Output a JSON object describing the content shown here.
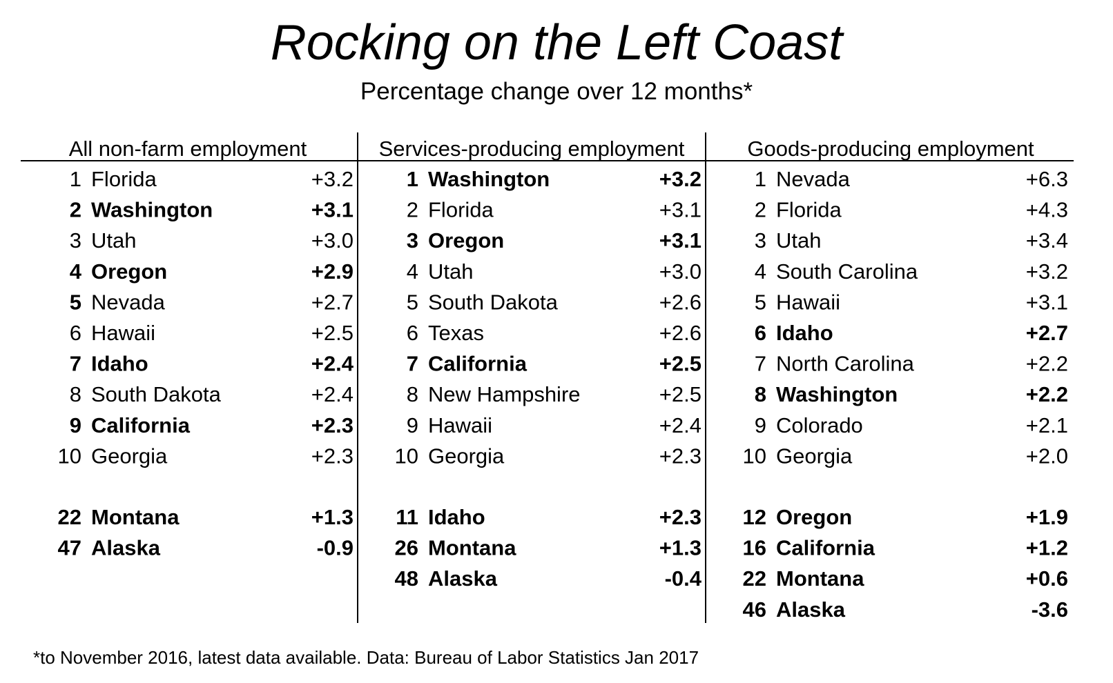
{
  "chart": {
    "title": "Rocking on the Left Coast",
    "subtitle": "Percentage change over 12 months*",
    "footnote": "*to November 2016, latest data available. Data: Bureau of Labor Statistics Jan 2017"
  },
  "chart_data": {
    "type": "table",
    "title": "Rocking on the Left Coast",
    "subtitle": "Percentage change over 12 months*",
    "columns": [
      {
        "header": "All non-farm employment",
        "top10": [
          {
            "rank": "1",
            "state": "Florida",
            "value": "+3.2",
            "bold": false
          },
          {
            "rank": "2",
            "state": "Washington",
            "value": "+3.1",
            "bold": true
          },
          {
            "rank": "3",
            "state": "Utah",
            "value": "+3.0",
            "bold": false
          },
          {
            "rank": "4",
            "state": "Oregon",
            "value": "+2.9",
            "bold": true
          },
          {
            "rank": "5",
            "state": "Nevada",
            "value": "+2.7",
            "bold": false,
            "rank_bold": true
          },
          {
            "rank": "6",
            "state": "Hawaii",
            "value": "+2.5",
            "bold": false
          },
          {
            "rank": "7",
            "state": "Idaho",
            "value": "+2.4",
            "bold": true
          },
          {
            "rank": "8",
            "state": "South Dakota",
            "value": "+2.4",
            "bold": false
          },
          {
            "rank": "9",
            "state": "California",
            "value": "+2.3",
            "bold": true
          },
          {
            "rank": "10",
            "state": "Georgia",
            "value": "+2.3",
            "bold": false
          }
        ],
        "others": [
          {
            "rank": "22",
            "state": "Montana",
            "value": "+1.3",
            "bold": true
          },
          {
            "rank": "47",
            "state": "Alaska",
            "value": "-0.9",
            "bold": true
          }
        ]
      },
      {
        "header": "Services-producing employment",
        "top10": [
          {
            "rank": "1",
            "state": "Washington",
            "value": "+3.2",
            "bold": true
          },
          {
            "rank": "2",
            "state": "Florida",
            "value": "+3.1",
            "bold": false
          },
          {
            "rank": "3",
            "state": "Oregon",
            "value": "+3.1",
            "bold": true
          },
          {
            "rank": "4",
            "state": "Utah",
            "value": "+3.0",
            "bold": false
          },
          {
            "rank": "5",
            "state": "South Dakota",
            "value": "+2.6",
            "bold": false
          },
          {
            "rank": "6",
            "state": "Texas",
            "value": "+2.6",
            "bold": false
          },
          {
            "rank": "7",
            "state": "California",
            "value": "+2.5",
            "bold": true
          },
          {
            "rank": "8",
            "state": "New Hampshire",
            "value": "+2.5",
            "bold": false
          },
          {
            "rank": "9",
            "state": "Hawaii",
            "value": "+2.4",
            "bold": false
          },
          {
            "rank": "10",
            "state": "Georgia",
            "value": "+2.3",
            "bold": false
          }
        ],
        "others": [
          {
            "rank": "11",
            "state": "Idaho",
            "value": "+2.3",
            "bold": true
          },
          {
            "rank": "26",
            "state": "Montana",
            "value": "+1.3",
            "bold": true
          },
          {
            "rank": "48",
            "state": "Alaska",
            "value": "-0.4",
            "bold": true
          }
        ]
      },
      {
        "header": "Goods-producing employment",
        "top10": [
          {
            "rank": "1",
            "state": "Nevada",
            "value": "+6.3",
            "bold": false
          },
          {
            "rank": "2",
            "state": "Florida",
            "value": "+4.3",
            "bold": false
          },
          {
            "rank": "3",
            "state": "Utah",
            "value": "+3.4",
            "bold": false
          },
          {
            "rank": "4",
            "state": "South Carolina",
            "value": "+3.2",
            "bold": false
          },
          {
            "rank": "5",
            "state": "Hawaii",
            "value": "+3.1",
            "bold": false
          },
          {
            "rank": "6",
            "state": "Idaho",
            "value": "+2.7",
            "bold": true
          },
          {
            "rank": "7",
            "state": "North Carolina",
            "value": "+2.2",
            "bold": false
          },
          {
            "rank": "8",
            "state": "Washington",
            "value": "+2.2",
            "bold": true
          },
          {
            "rank": "9",
            "state": "Colorado",
            "value": "+2.1",
            "bold": false
          },
          {
            "rank": "10",
            "state": "Georgia",
            "value": "+2.0",
            "bold": false
          }
        ],
        "others": [
          {
            "rank": "12",
            "state": "Oregon",
            "value": "+1.9",
            "bold": true
          },
          {
            "rank": "16",
            "state": "California",
            "value": "+1.2",
            "bold": true
          },
          {
            "rank": "22",
            "state": "Montana",
            "value": "+0.6",
            "bold": true
          },
          {
            "rank": "46",
            "state": "Alaska",
            "value": "-3.6",
            "bold": true
          }
        ]
      }
    ]
  }
}
